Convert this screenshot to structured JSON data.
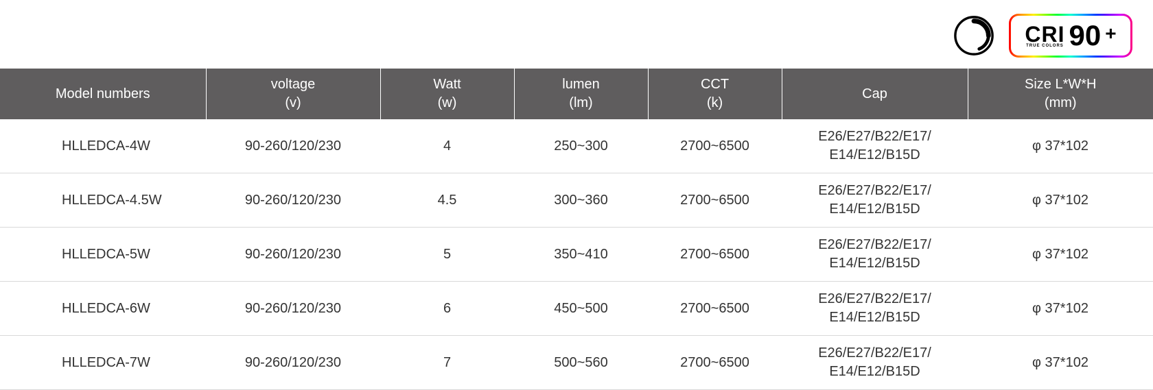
{
  "badges": {
    "cri": {
      "label": "CRI",
      "sub": "TRUE COLORS",
      "value": "90",
      "plus": "+"
    }
  },
  "table": {
    "columns": [
      {
        "line1": "Model numbers",
        "line2": ""
      },
      {
        "line1": "voltage",
        "line2": "(v)"
      },
      {
        "line1": "Watt",
        "line2": "(w)"
      },
      {
        "line1": "lumen",
        "line2": "(lm)"
      },
      {
        "line1": "CCT",
        "line2": "(k)"
      },
      {
        "line1": "Cap",
        "line2": ""
      },
      {
        "line1": "Size L*W*H",
        "line2": "(mm)"
      }
    ],
    "rows": [
      {
        "model": "HLLEDCA-4W",
        "voltage": "90-260/120/230",
        "watt": "4",
        "lumen": "250~300",
        "cct": "2700~6500",
        "cap1": "E26/E27/B22/E17/",
        "cap2": "E14/E12/B15D",
        "size": "φ 37*102"
      },
      {
        "model": "HLLEDCA-4.5W",
        "voltage": "90-260/120/230",
        "watt": "4.5",
        "lumen": "300~360",
        "cct": "2700~6500",
        "cap1": "E26/E27/B22/E17/",
        "cap2": "E14/E12/B15D",
        "size": "φ 37*102"
      },
      {
        "model": "HLLEDCA-5W",
        "voltage": "90-260/120/230",
        "watt": "5",
        "lumen": "350~410",
        "cct": "2700~6500",
        "cap1": "E26/E27/B22/E17/",
        "cap2": "E14/E12/B15D",
        "size": "φ 37*102"
      },
      {
        "model": "HLLEDCA-6W",
        "voltage": "90-260/120/230",
        "watt": "6",
        "lumen": "450~500",
        "cct": "2700~6500",
        "cap1": "E26/E27/B22/E17/",
        "cap2": "E14/E12/B15D",
        "size": "φ 37*102"
      },
      {
        "model": "HLLEDCA-7W",
        "voltage": "90-260/120/230",
        "watt": "7",
        "lumen": "500~560",
        "cct": "2700~6500",
        "cap1": "E26/E27/B22/E17/",
        "cap2": "E14/E12/B15D",
        "size": "φ 37*102"
      }
    ]
  },
  "style": {
    "header_bg": "#5f5d5e",
    "header_fg": "#ffffff",
    "row_border": "#d9d9d9",
    "text_color": "#333333",
    "font_header": 20,
    "font_body": 20
  }
}
